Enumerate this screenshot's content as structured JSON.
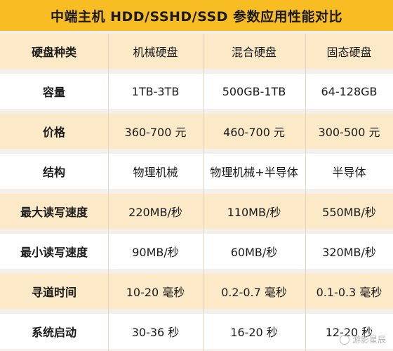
{
  "title": "中端主机  HDD/SSHD/SSD 参数应用性能对比",
  "table": {
    "headers": [
      "硬盘种类",
      "机械硬盘",
      "混合硬盘",
      "固态硬盘"
    ],
    "rows": [
      [
        "容量",
        "1TB-3TB",
        "500GB-1TB",
        "64-128GB"
      ],
      [
        "价格",
        "360-700 元",
        "460-700 元",
        "300-500 元"
      ],
      [
        "结构",
        "物理机械",
        "物理机械+半导体",
        "半导体"
      ],
      [
        "最大读写速度",
        "220MB/秒",
        "110MB/秒",
        "550MB/秒"
      ],
      [
        "最小读写速度",
        "90MB/秒",
        "60MB/秒",
        "320MB/秒"
      ],
      [
        "寻道时间",
        "10-20 毫秒",
        "0.2-0.7 毫秒",
        "0.1-0.3 毫秒"
      ],
      [
        "系统启动",
        "30-36 秒",
        "16-20 秒",
        "12-20 秒"
      ]
    ]
  },
  "watermark": "游影星辰",
  "colors": {
    "title_bg": "#f7bd22",
    "row_tint": "#fbe9c8",
    "row_white": "#ffffff"
  }
}
